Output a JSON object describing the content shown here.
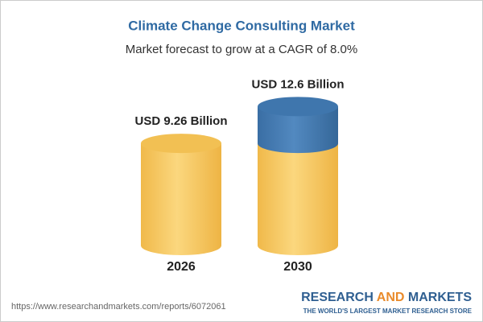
{
  "chart_data": {
    "type": "cylinder",
    "title": "Climate Change Consulting Market",
    "subtitle": "Market forecast to grow at a CAGR of 8.0%",
    "categories": [
      "2026",
      "2030"
    ],
    "values": [
      9.26,
      12.6
    ],
    "value_labels": [
      "USD 9.26 Billion",
      "USD 12.6 Billion"
    ],
    "color": "#f2c053",
    "growth_color": "#3f76ad",
    "source": "https://www.researchandmarkets.com/reports/6072061"
  },
  "brand": {
    "name": [
      "RESEARCH",
      "AND",
      "MARKETS"
    ],
    "tagline": "THE WORLD'S LARGEST MARKET RESEARCH STORE"
  }
}
